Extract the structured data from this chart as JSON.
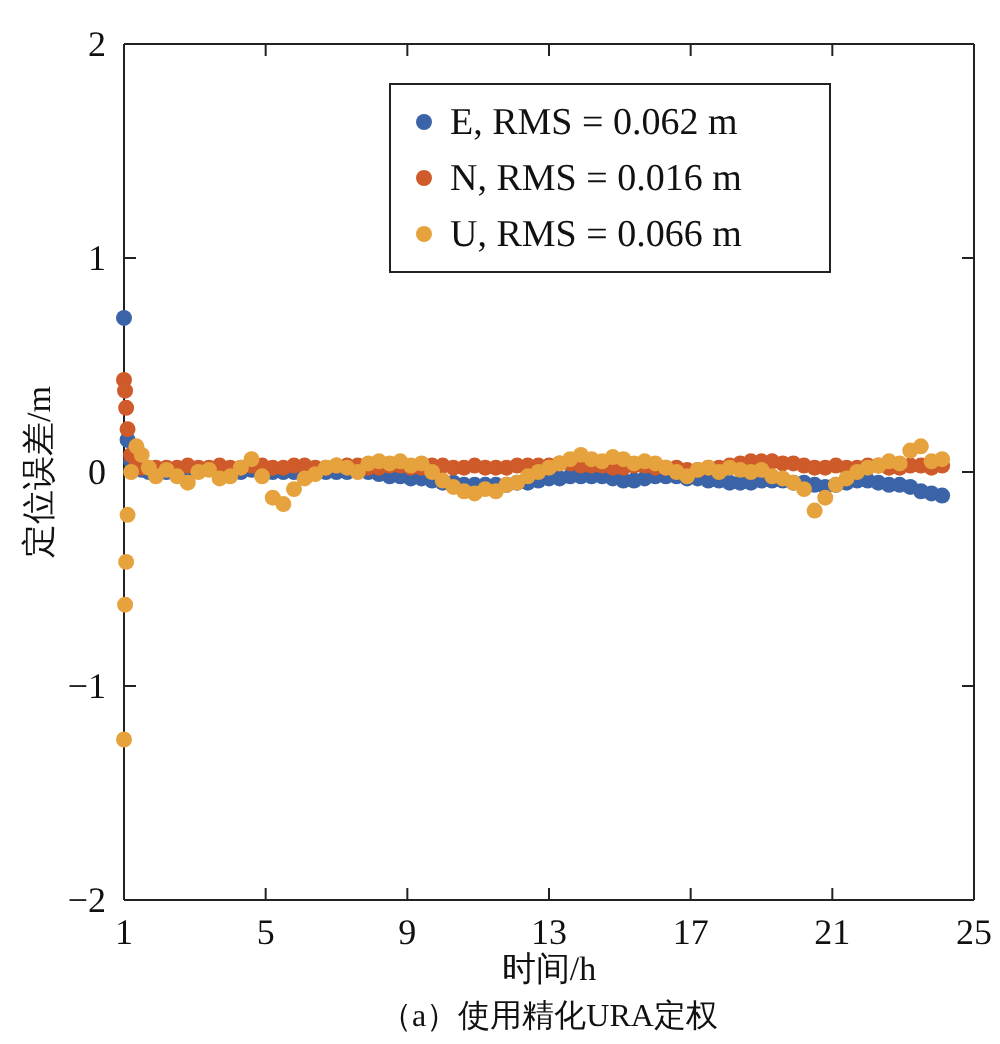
{
  "chart_data": {
    "type": "scatter",
    "xlabel": "时间/h",
    "ylabel": "定位误差/m",
    "annotations": [
      "（a）使用精化URA定权"
    ],
    "xlim": [
      1,
      25
    ],
    "xticks": [
      1,
      5,
      9,
      13,
      17,
      21,
      25
    ],
    "ylim": [
      -2,
      2
    ],
    "yticks": [
      {
        "value": -2,
        "label": "−2"
      },
      {
        "value": -1,
        "label": "−1"
      },
      0,
      1,
      2
    ],
    "grid": false,
    "legend": "top right",
    "marker": "circle",
    "x": [
      1,
      1.03,
      1.06,
      1.1,
      1.2,
      1.35,
      1.5,
      1.7,
      1.9,
      2.2,
      2.5,
      2.8,
      3.1,
      3.4,
      3.7,
      4,
      4.3,
      4.6,
      4.9,
      5.2,
      5.5,
      5.8,
      6.1,
      6.4,
      6.7,
      7,
      7.3,
      7.6,
      7.9,
      8.2,
      8.5,
      8.8,
      9.1,
      9.4,
      9.7,
      10,
      10.3,
      10.6,
      10.9,
      11.2,
      11.5,
      11.8,
      12.1,
      12.4,
      12.7,
      13,
      13.3,
      13.6,
      13.9,
      14.2,
      14.5,
      14.8,
      15.1,
      15.4,
      15.7,
      16,
      16.3,
      16.6,
      16.9,
      17.2,
      17.5,
      17.8,
      18.1,
      18.4,
      18.7,
      19,
      19.3,
      19.6,
      19.9,
      20.2,
      20.5,
      20.8,
      21.1,
      21.4,
      21.7,
      22,
      22.3,
      22.6,
      22.9,
      23.2,
      23.5,
      23.8,
      24.1
    ],
    "series": [
      {
        "name": "E, RMS = 0.062 m",
        "color": "#3b64a8",
        "values": [
          0.72,
          null,
          null,
          0.15,
          0.05,
          null,
          0.01,
          0,
          null,
          0,
          null,
          0,
          null,
          null,
          null,
          null,
          0,
          0.01,
          null,
          0,
          0,
          0,
          null,
          null,
          0,
          0,
          0,
          null,
          0,
          -0.01,
          -0.02,
          -0.02,
          -0.03,
          -0.03,
          -0.04,
          -0.05,
          -0.05,
          -0.06,
          -0.06,
          -0.06,
          -0.06,
          -0.06,
          -0.05,
          -0.05,
          -0.04,
          -0.03,
          -0.03,
          -0.02,
          -0.02,
          -0.02,
          -0.02,
          -0.03,
          -0.04,
          -0.04,
          -0.03,
          -0.02,
          -0.02,
          -0.02,
          -0.03,
          -0.03,
          -0.04,
          -0.04,
          -0.05,
          -0.05,
          -0.05,
          -0.04,
          -0.04,
          -0.04,
          -0.05,
          -0.05,
          -0.06,
          -0.07,
          -0.06,
          -0.05,
          -0.04,
          -0.04,
          -0.05,
          -0.06,
          -0.06,
          -0.07,
          -0.09,
          -0.1,
          -0.11
        ]
      },
      {
        "name": "N, RMS = 0.016 m",
        "color": "#cf5a2a",
        "values": [
          0.43,
          0.38,
          0.3,
          0.2,
          0.08,
          0.03,
          0.02,
          null,
          0.02,
          0.02,
          0.02,
          0.03,
          0.02,
          0.02,
          0.03,
          0.02,
          0.02,
          0.03,
          0.03,
          0.02,
          0.02,
          0.03,
          0.03,
          0.02,
          0.02,
          0.03,
          0.03,
          0.03,
          0.02,
          0.02,
          0.03,
          0.03,
          0.02,
          0.02,
          0.03,
          0.03,
          0.02,
          0.02,
          0.03,
          0.02,
          0.02,
          0.02,
          0.03,
          0.03,
          0.03,
          0.03,
          0.04,
          0.04,
          0.03,
          0.03,
          0.03,
          0.02,
          0.02,
          0.03,
          0.03,
          0.02,
          0.02,
          0.02,
          0.01,
          0.01,
          0.02,
          0.02,
          0.03,
          0.04,
          0.05,
          0.05,
          0.05,
          0.04,
          0.04,
          0.03,
          0.02,
          0.02,
          0.03,
          0.02,
          0.02,
          0.03,
          0.03,
          0.02,
          0.02,
          0.03,
          0.03,
          0.02,
          0.03
        ]
      },
      {
        "name": "U, RMS = 0.066 m",
        "color": "#e6a23c",
        "values": [
          -1.25,
          -0.62,
          -0.42,
          -0.2,
          0,
          0.12,
          0.08,
          0.02,
          -0.02,
          0.01,
          -0.02,
          -0.05,
          0,
          0.01,
          -0.03,
          -0.02,
          0.02,
          0.06,
          -0.02,
          -0.12,
          -0.15,
          -0.08,
          -0.03,
          -0.01,
          0.02,
          0.03,
          0.02,
          0,
          0.04,
          0.05,
          0.04,
          0.05,
          0.03,
          0.04,
          0,
          -0.04,
          -0.07,
          -0.09,
          -0.1,
          -0.08,
          -0.09,
          -0.06,
          -0.05,
          -0.02,
          0,
          0.02,
          0.04,
          0.06,
          0.08,
          0.06,
          0.05,
          0.07,
          0.06,
          0.04,
          0.05,
          0.04,
          0.02,
          0,
          -0.02,
          0.01,
          0.02,
          0,
          0.02,
          0.01,
          0,
          0.01,
          -0.02,
          -0.03,
          -0.05,
          -0.08,
          -0.18,
          -0.12,
          -0.06,
          -0.03,
          0,
          0.02,
          0.03,
          0.05,
          0.04,
          0.1,
          0.12,
          0.05,
          0.06
        ]
      }
    ]
  }
}
